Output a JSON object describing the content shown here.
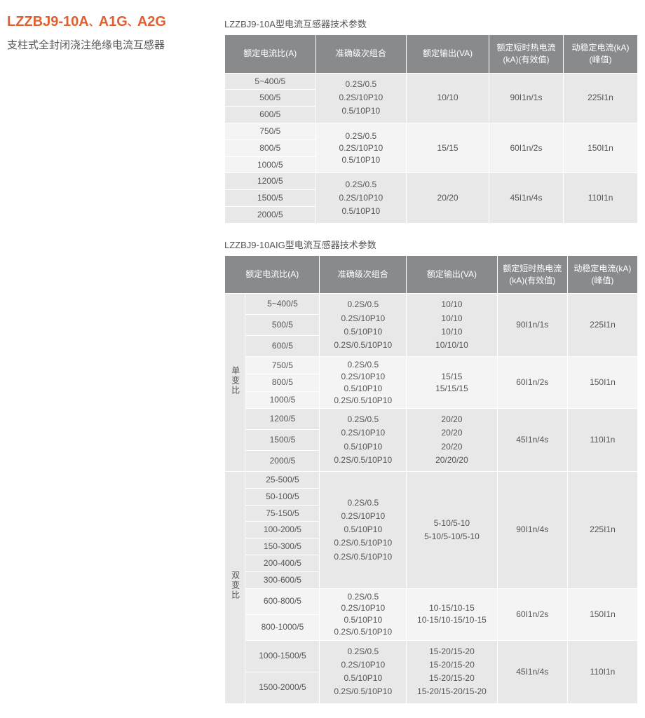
{
  "header": {
    "title_parts": [
      "LZZBJ9-10A",
      "A1G",
      "A2G"
    ],
    "separator": "、",
    "subtitle": "支柱式全封闭浇注绝缘电流互感器"
  },
  "table1": {
    "caption": "LZZBJ9-10A型电流互感器技术参数",
    "headers": [
      "额定电流比(A)",
      "准确级次组合",
      "额定输出(VA)",
      "额定短时热电流(kA)(有效值)",
      "动稳定电流(kA)(峰值)"
    ],
    "groups": [
      {
        "ratios": [
          "5~400/5",
          "500/5",
          "600/5"
        ],
        "accuracy": [
          "0.2S/0.5",
          "0.2S/10P10",
          "0.5/10P10"
        ],
        "output": "10/10",
        "thermal": "90I1n/1s",
        "dynamic": "225I1n"
      },
      {
        "ratios": [
          "750/5",
          "800/5",
          "1000/5"
        ],
        "accuracy": [
          "0.2S/0.5",
          "0.2S/10P10",
          "0.5/10P10"
        ],
        "output": "15/15",
        "thermal": "60I1n/2s",
        "dynamic": "150I1n"
      },
      {
        "ratios": [
          "1200/5",
          "1500/5",
          "2000/5"
        ],
        "accuracy": [
          "0.2S/0.5",
          "0.2S/10P10",
          "0.5/10P10"
        ],
        "output": "20/20",
        "thermal": "45I1n/4s",
        "dynamic": "110I1n"
      }
    ]
  },
  "table2": {
    "caption": "LZZBJ9-10AIG型电流互感器技术参数",
    "headers": [
      "额定电流比(A)",
      "准确级次组合",
      "额定输出(VA)",
      "额定短时热电流(kA)(有效值)",
      "动稳定电流(kA)(峰值)"
    ],
    "sections": [
      {
        "label": "单变比",
        "groups": [
          {
            "ratios": [
              "5~400/5",
              "500/5",
              "600/5"
            ],
            "accuracy": [
              "0.2S/0.5",
              "0.2S/10P10",
              "0.5/10P10",
              "0.2S/0.5/10P10"
            ],
            "output": [
              "10/10",
              "10/10",
              "10/10",
              "10/10/10"
            ],
            "thermal": "90I1n/1s",
            "dynamic": "225I1n"
          },
          {
            "ratios": [
              "750/5",
              "800/5",
              "1000/5"
            ],
            "accuracy": [
              "0.2S/0.5",
              "0.2S/10P10",
              "0.5/10P10",
              "0.2S/0.5/10P10"
            ],
            "output": [
              "15/15",
              "15/15/15"
            ],
            "thermal": "60I1n/2s",
            "dynamic": "150I1n"
          },
          {
            "ratios": [
              "1200/5",
              "1500/5",
              "2000/5"
            ],
            "accuracy": [
              "0.2S/0.5",
              "0.2S/10P10",
              "0.5/10P10",
              "0.2S/0.5/10P10"
            ],
            "output": [
              "20/20",
              "20/20",
              "20/20",
              "20/20/20"
            ],
            "thermal": "45I1n/4s",
            "dynamic": "110I1n"
          }
        ]
      },
      {
        "label": "双变比",
        "groups": [
          {
            "ratios": [
              "25-500/5",
              "50-100/5",
              "75-150/5",
              "100-200/5",
              "150-300/5",
              "200-400/5",
              "300-600/5"
            ],
            "accuracy": [
              "0.2S/0.5",
              "0.2S/10P10",
              "0.5/10P10",
              "0.2S/0.5/10P10",
              "0.2S/0.5/10P10"
            ],
            "output": [
              "5-10/5-10",
              "5-10/5-10/5-10"
            ],
            "thermal": "90I1n/4s",
            "dynamic": "225I1n"
          },
          {
            "ratios": [
              "600-800/5",
              "800-1000/5"
            ],
            "accuracy": [
              "0.2S/0.5",
              "0.2S/10P10",
              "0.5/10P10",
              "0.2S/0.5/10P10"
            ],
            "output": [
              "10-15/10-15",
              "10-15/10-15/10-15"
            ],
            "thermal": "60I1n/2s",
            "dynamic": "150I1n"
          },
          {
            "ratios": [
              "1000-1500/5",
              "1500-2000/5"
            ],
            "accuracy": [
              "0.2S/0.5",
              "0.2S/10P10",
              "0.5/10P10",
              "0.2S/0.5/10P10"
            ],
            "output": [
              "15-20/15-20",
              "15-20/15-20",
              "15-20/15-20",
              "15-20/15-20/15-20"
            ],
            "thermal": "45I1n/4s",
            "dynamic": "110I1n"
          }
        ]
      }
    ]
  },
  "colors": {
    "accent": "#e06030",
    "header_bg": "#888a8c",
    "cell_bg": "#e8e8e8",
    "cell_alt": "#f4f4f4",
    "text": "#555555"
  }
}
